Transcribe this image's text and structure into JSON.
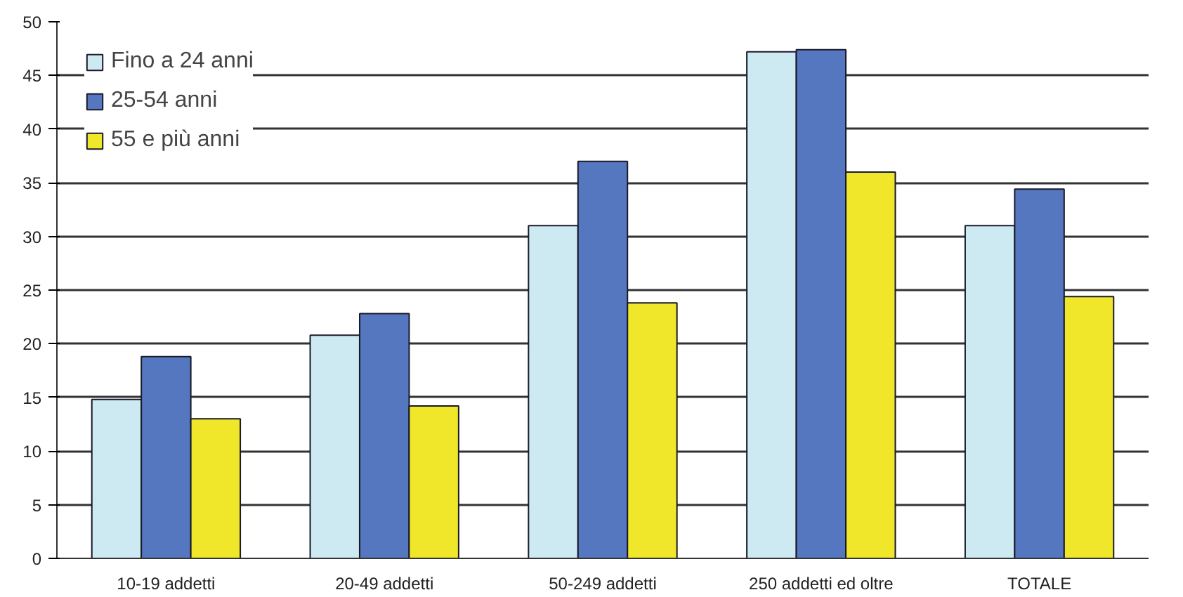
{
  "chart_data": {
    "type": "bar",
    "categories": [
      "10-19 addetti",
      "20-49 addetti",
      "50-249 addetti",
      "250 addetti ed oltre",
      "TOTALE"
    ],
    "series": [
      {
        "name": "Fino a 24 anni",
        "color": "#cdeaf2",
        "values": [
          14.8,
          20.8,
          31.0,
          47.2,
          31.0
        ]
      },
      {
        "name": "25-54 anni",
        "color": "#5577bf",
        "values": [
          18.8,
          22.8,
          37.0,
          47.4,
          34.4
        ]
      },
      {
        "name": "55 e più anni",
        "color": "#f0e62a",
        "values": [
          13.0,
          14.2,
          23.8,
          36.0,
          24.4
        ]
      }
    ],
    "ylim": [
      0,
      50
    ],
    "yticks": [
      0,
      5,
      10,
      15,
      20,
      25,
      30,
      35,
      40,
      45,
      50
    ],
    "grid": "y",
    "legend": "top left"
  }
}
